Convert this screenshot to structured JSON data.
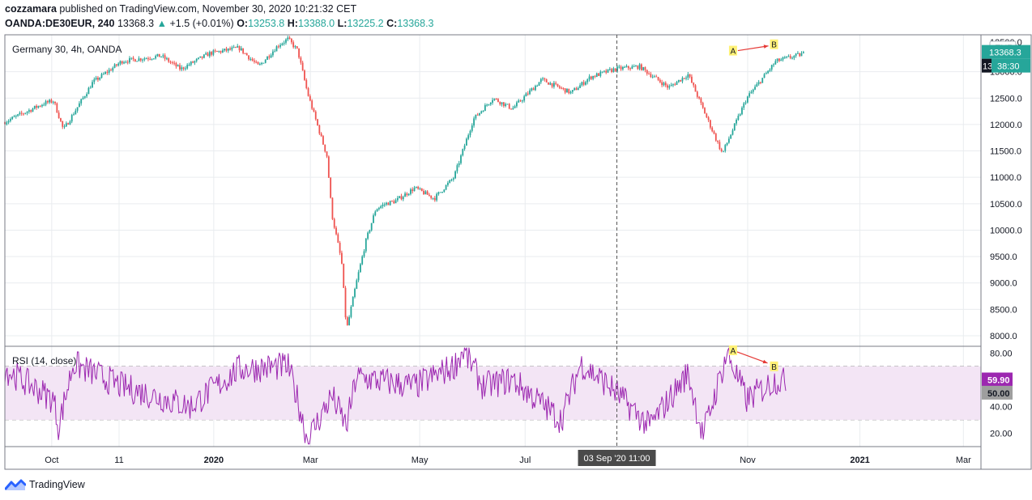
{
  "header": {
    "author": "cozzamara",
    "published_text": " published on TradingView.com, November 30, 2020 10:21:32 CET",
    "symbol": "OANDA:DE30EUR, 240",
    "last": "13368.3",
    "change": "+1.5 (+0.01%)",
    "o_label": "O:",
    "o_value": "13253.8",
    "h_label": "H:",
    "h_value": "13388.0",
    "l_label": "L:",
    "l_value": "13225.2",
    "c_label": "C:",
    "c_value": "13368.3"
  },
  "footer": {
    "brand": "TradingView"
  },
  "colors": {
    "up": "#26a69a",
    "down": "#ef5350",
    "rsi": "#9c27b0",
    "band": "#f3e5f5",
    "grid": "#e9ecef"
  },
  "chart_data": [
    {
      "type": "candlestick",
      "title": "Germany 30, 4h, OANDA",
      "currency": "EUR",
      "ylim": [
        7800,
        13700
      ],
      "y_ticks": [
        8000,
        8500,
        9000,
        9500,
        10000,
        10500,
        11000,
        11500,
        12000,
        12500,
        13000
      ],
      "y_tick_labels": [
        "8000.0",
        "8500.0",
        "9000.0",
        "9500.0",
        "10000.0",
        "10500.0",
        "11000.0",
        "11500.0",
        "12000.0",
        "12500.0",
        "13000.0"
      ],
      "x_ticks": [
        "Oct",
        "11",
        "2020",
        "Mar",
        "May",
        "Jul",
        "Nov",
        "2021",
        "Mar"
      ],
      "x_tick_pos": [
        0.048,
        0.117,
        0.214,
        0.313,
        0.425,
        0.533,
        0.761,
        0.876,
        0.982
      ],
      "crosshair_label": "03 Sep '20   11:00",
      "crosshair_pos": 0.627,
      "price_label": "13368.3",
      "countdown_label": "38:30",
      "price_label_clipped": "13",
      "top_clipped_tick": "13500.0",
      "anchors": [
        [
          0.0,
          12050
        ],
        [
          0.04,
          12400
        ],
        [
          0.05,
          12450
        ],
        [
          0.06,
          11900
        ],
        [
          0.09,
          12800
        ],
        [
          0.12,
          13200
        ],
        [
          0.16,
          13300
        ],
        [
          0.18,
          13050
        ],
        [
          0.21,
          13350
        ],
        [
          0.24,
          13450
        ],
        [
          0.26,
          13100
        ],
        [
          0.28,
          13500
        ],
        [
          0.29,
          13620
        ],
        [
          0.3,
          13400
        ],
        [
          0.31,
          12600
        ],
        [
          0.33,
          11400
        ],
        [
          0.335,
          10300
        ],
        [
          0.345,
          9400
        ],
        [
          0.35,
          8100
        ],
        [
          0.36,
          9000
        ],
        [
          0.37,
          9800
        ],
        [
          0.38,
          10400
        ],
        [
          0.39,
          10500
        ],
        [
          0.4,
          10550
        ],
        [
          0.42,
          10800
        ],
        [
          0.44,
          10600
        ],
        [
          0.46,
          11000
        ],
        [
          0.48,
          12100
        ],
        [
          0.5,
          12500
        ],
        [
          0.52,
          12300
        ],
        [
          0.55,
          12850
        ],
        [
          0.58,
          12600
        ],
        [
          0.6,
          12900
        ],
        [
          0.625,
          13050
        ],
        [
          0.65,
          13100
        ],
        [
          0.68,
          12700
        ],
        [
          0.7,
          12950
        ],
        [
          0.735,
          11450
        ],
        [
          0.76,
          12500
        ],
        [
          0.79,
          13200
        ],
        [
          0.82,
          13350
        ]
      ],
      "annotations": [
        {
          "label": "A",
          "x": 0.746,
          "value": 13400
        },
        {
          "label": "B",
          "x": 0.788,
          "value": 13520
        }
      ]
    },
    {
      "type": "line",
      "title": "RSI (14, close)",
      "ylim": [
        10,
        85
      ],
      "y_ticks": [
        20,
        40,
        50,
        80
      ],
      "y_tick_labels": [
        "20.00",
        "40.00",
        "50.00",
        "80.00"
      ],
      "band": [
        30,
        70
      ],
      "midline": 50,
      "last_value_label": "59.90",
      "midline_label": "50.00",
      "anchors": [
        [
          0.0,
          68
        ],
        [
          0.05,
          45
        ],
        [
          0.055,
          25
        ],
        [
          0.07,
          72
        ],
        [
          0.12,
          55
        ],
        [
          0.19,
          40
        ],
        [
          0.24,
          68
        ],
        [
          0.29,
          70
        ],
        [
          0.3,
          45
        ],
        [
          0.31,
          15
        ],
        [
          0.335,
          48
        ],
        [
          0.35,
          25
        ],
        [
          0.36,
          62
        ],
        [
          0.42,
          55
        ],
        [
          0.46,
          70
        ],
        [
          0.47,
          82
        ],
        [
          0.49,
          55
        ],
        [
          0.52,
          60
        ],
        [
          0.57,
          30
        ],
        [
          0.59,
          72
        ],
        [
          0.62,
          55
        ],
        [
          0.66,
          25
        ],
        [
          0.7,
          65
        ],
        [
          0.715,
          18
        ],
        [
          0.74,
          80
        ],
        [
          0.76,
          45
        ],
        [
          0.79,
          60
        ],
        [
          0.8,
          58
        ]
      ],
      "annotations": [
        {
          "label": "A",
          "x": 0.746,
          "value": 82
        },
        {
          "label": "B",
          "x": 0.788,
          "value": 70
        }
      ]
    }
  ]
}
